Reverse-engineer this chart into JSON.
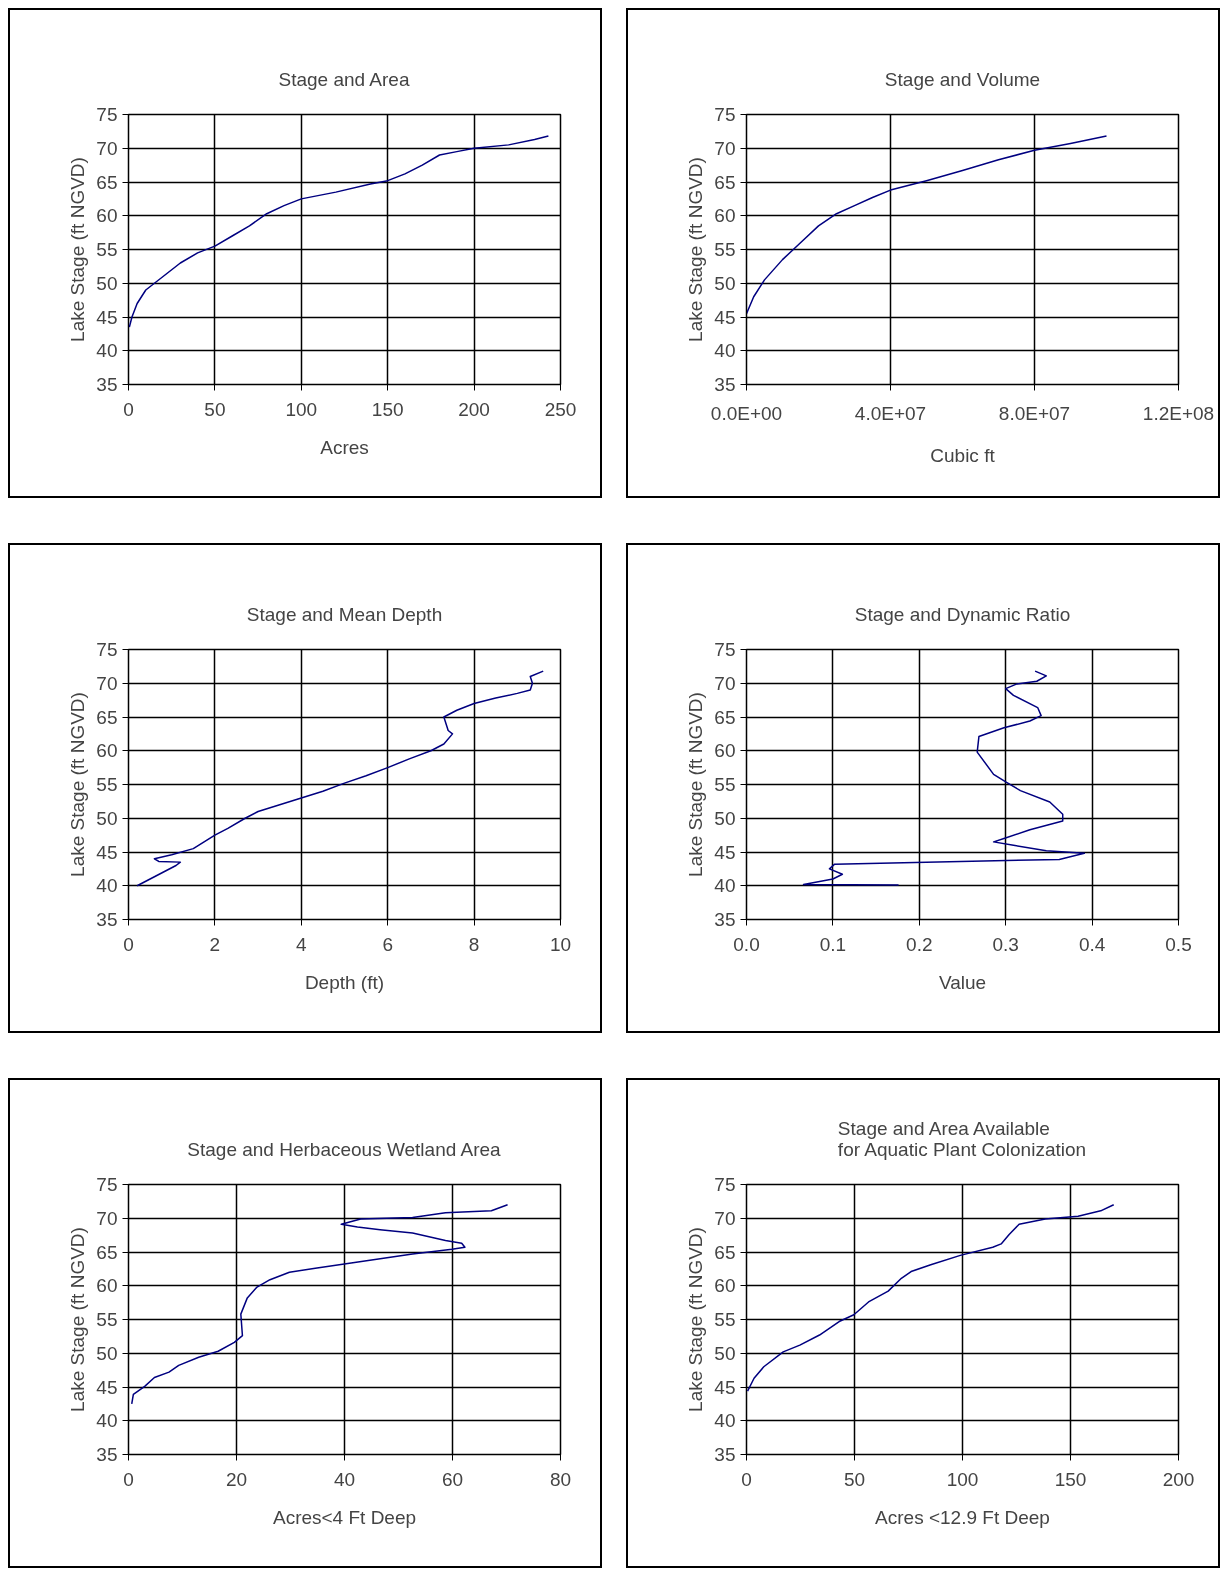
{
  "chart_data": [
    {
      "type": "line",
      "title": "Stage and Area",
      "xlabel": "Acres",
      "ylabel": "Lake Stage (ft NGVD)",
      "xlim": [
        0,
        250
      ],
      "xticks": [
        0,
        50,
        100,
        150,
        200,
        250
      ],
      "ylim": [
        35,
        75
      ],
      "yticks": [
        35,
        40,
        45,
        50,
        55,
        60,
        65,
        70,
        75
      ],
      "grid": true,
      "series": [
        {
          "color": "#000080",
          "x": [
            0.5,
            2,
            5,
            10,
            20,
            30,
            40,
            50,
            60,
            70,
            80,
            90,
            100,
            120,
            140,
            150,
            160,
            170,
            180,
            190,
            200,
            220,
            235,
            243
          ],
          "values": [
            43.5,
            45,
            47,
            49,
            51,
            53,
            54.5,
            55.5,
            57,
            58.5,
            60.3,
            61.5,
            62.5,
            63.5,
            64.7,
            65.2,
            66.2,
            67.5,
            69,
            69.5,
            70,
            70.5,
            71.3,
            71.8
          ]
        }
      ]
    },
    {
      "type": "line",
      "title": "Stage and Volume",
      "xlabel": "Cubic ft",
      "ylabel": "Lake Stage (ft NGVD)",
      "xlim": [
        0,
        120000000
      ],
      "xticks": [
        {
          "value": 0,
          "label": "0.0E+00"
        },
        {
          "value": 40000000,
          "label": "4.0E+07"
        },
        {
          "value": 80000000,
          "label": "8.0E+07"
        },
        {
          "value": 120000000,
          "label": "1.2E+08"
        }
      ],
      "ylim": [
        35,
        75
      ],
      "yticks": [
        35,
        40,
        45,
        50,
        55,
        60,
        65,
        70,
        75
      ],
      "grid": true,
      "series": [
        {
          "color": "#000080",
          "x": [
            0,
            2000000,
            5000000,
            10000000,
            15000000,
            20000000,
            25000000,
            30000000,
            35000000,
            40000000,
            50000000,
            60000000,
            70000000,
            80000000,
            90000000,
            100000000
          ],
          "values": [
            45.5,
            48,
            50.5,
            53.5,
            56,
            58.5,
            60.3,
            61.5,
            62.7,
            63.8,
            65.2,
            66.7,
            68.3,
            69.7,
            70.7,
            71.8
          ]
        }
      ]
    },
    {
      "type": "line",
      "title": "Stage and Mean Depth",
      "xlabel": "Depth (ft)",
      "ylabel": "Lake Stage (ft NGVD)",
      "xlim": [
        0,
        10
      ],
      "xticks": [
        0,
        2,
        4,
        6,
        8,
        10
      ],
      "ylim": [
        35,
        75
      ],
      "yticks": [
        35,
        40,
        45,
        50,
        55,
        60,
        65,
        70,
        75
      ],
      "grid": true,
      "series": [
        {
          "color": "#000080",
          "x": [
            0.2,
            0.5,
            0.8,
            1.1,
            1.2,
            0.7,
            0.6,
            1,
            1.5,
            2,
            2.3,
            2.7,
            3,
            3.5,
            4,
            4.5,
            5,
            5.5,
            6,
            6.5,
            7,
            7.3,
            7.5,
            7.4,
            7.3,
            7.6,
            8,
            8.5,
            9,
            9.3,
            9.35,
            9.3,
            9.6
          ],
          "values": [
            40,
            41,
            42,
            43,
            43.5,
            43.6,
            44,
            44.6,
            45.5,
            47.5,
            48.5,
            50,
            51,
            52,
            53,
            54,
            55.2,
            56.3,
            57.5,
            58.8,
            60,
            61,
            62.5,
            63,
            65,
            66,
            67,
            67.8,
            68.5,
            69,
            70,
            71,
            71.8
          ]
        }
      ]
    },
    {
      "type": "line",
      "title": "Stage and Dynamic Ratio",
      "xlabel": "Value",
      "ylabel": "Lake Stage (ft NGVD)",
      "xlim": [
        0,
        0.5
      ],
      "xticks": [
        {
          "value": 0,
          "label": "0.0"
        },
        {
          "value": 0.1,
          "label": "0.1"
        },
        {
          "value": 0.2,
          "label": "0.2"
        },
        {
          "value": 0.3,
          "label": "0.3"
        },
        {
          "value": 0.4,
          "label": "0.4"
        },
        {
          "value": 0.5,
          "label": "0.5"
        }
      ],
      "ylim": [
        35,
        75
      ],
      "yticks": [
        35,
        40,
        45,
        50,
        55,
        60,
        65,
        70,
        75
      ],
      "grid": true,
      "series": [
        {
          "color": "#000080",
          "x": [
            0.176,
            0.066,
            0.1,
            0.111,
            0.096,
            0.102,
            0.362,
            0.391,
            0.347,
            0.309,
            0.286,
            0.298,
            0.328,
            0.366,
            0.366,
            0.351,
            0.317,
            0.301,
            0.286,
            0.267,
            0.269,
            0.298,
            0.328,
            0.341,
            0.337,
            0.309,
            0.3,
            0.313,
            0.336,
            0.347,
            0.334
          ],
          "values": [
            40.1,
            40.2,
            41,
            41.7,
            42.5,
            43.2,
            43.9,
            44.8,
            45.2,
            46,
            46.5,
            47,
            48.3,
            49.6,
            50.6,
            52.4,
            54.1,
            55.3,
            56.5,
            59.8,
            62.1,
            63.4,
            64.4,
            65.2,
            66.4,
            68.2,
            69.2,
            69.9,
            70.3,
            71.1,
            71.8
          ]
        }
      ]
    },
    {
      "type": "line",
      "title": "Stage and Herbaceous Wetland Area",
      "xlabel": "Acres<4 Ft Deep",
      "ylabel": "Lake Stage (ft NGVD)",
      "xlim": [
        0,
        80
      ],
      "xticks": [
        0,
        20,
        40,
        60,
        80
      ],
      "ylim": [
        35,
        75
      ],
      "yticks": [
        35,
        40,
        45,
        50,
        55,
        60,
        65,
        70,
        75
      ],
      "grid": true,
      "series": [
        {
          "color": "#000080",
          "x": [
            0.6,
            0.9,
            3,
            4.8,
            7.5,
            9.3,
            13,
            16.6,
            19.6,
            21.1,
            20.8,
            22,
            23.8,
            26.2,
            29.8,
            34.6,
            40.6,
            46.6,
            52.6,
            59.9,
            62.3,
            61.7,
            58.7,
            52.6,
            46.6,
            42.4,
            39.4,
            43,
            52.6,
            58.7,
            67.2,
            70.2
          ],
          "values": [
            42.5,
            43.9,
            45.1,
            46.4,
            47.2,
            48.2,
            49.4,
            50.3,
            51.6,
            52.6,
            55.8,
            58.2,
            59.8,
            60.9,
            62,
            62.6,
            63.3,
            64,
            64.7,
            65.4,
            65.7,
            66.3,
            66.7,
            67.8,
            68.3,
            68.7,
            69.1,
            69.9,
            70.1,
            70.8,
            71.1,
            72
          ]
        }
      ]
    },
    {
      "type": "line",
      "title": "Stage and Area Available\nfor Aquatic Plant Colonization",
      "xlabel": "Acres <12.9 Ft Deep",
      "ylabel": "Lake Stage (ft NGVD)",
      "xlim": [
        0,
        200
      ],
      "xticks": [
        0,
        50,
        100,
        150,
        200
      ],
      "ylim": [
        35,
        75
      ],
      "yticks": [
        35,
        40,
        45,
        50,
        55,
        60,
        65,
        70,
        75
      ],
      "grid": true,
      "series": [
        {
          "color": "#000080",
          "x": [
            0.5,
            3.5,
            8,
            17,
            24.7,
            33.8,
            42.9,
            49.7,
            56.5,
            65.6,
            71.7,
            76.2,
            85.3,
            99,
            114,
            117.9,
            121.6,
            126.2,
            138.3,
            153.5,
            164,
            170
          ],
          "values": [
            44.4,
            46.3,
            48,
            50.2,
            51.2,
            52.7,
            54.7,
            55.7,
            57.6,
            59.2,
            61.1,
            62.1,
            63.1,
            64.5,
            65.7,
            66.2,
            67.6,
            69.1,
            69.9,
            70.3,
            71.1,
            72
          ]
        }
      ]
    }
  ]
}
